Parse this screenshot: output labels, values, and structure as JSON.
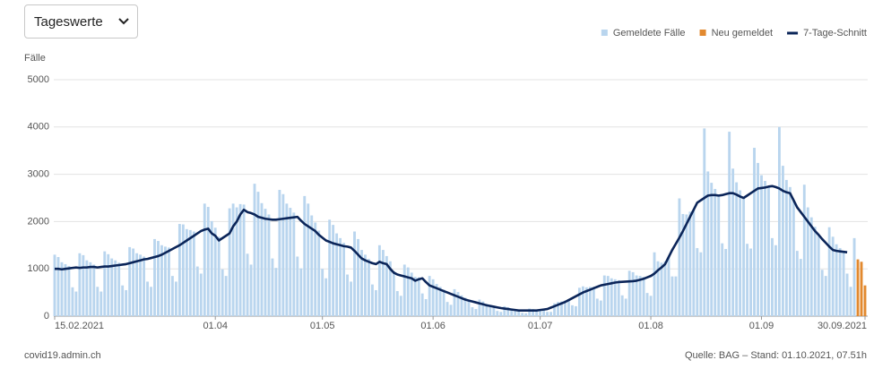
{
  "dropdown": {
    "label": "Tageswerte"
  },
  "footer": {
    "site": "covid19.admin.ch",
    "source": "Quelle: BAG – Stand: 01.10.2021, 07.51h"
  },
  "chart_data": {
    "type": "bar",
    "y_label": "Fälle",
    "ylim": [
      0,
      5000
    ],
    "yticks": [
      0,
      1000,
      2000,
      3000,
      4000,
      5000
    ],
    "grid": true,
    "legend": "top-right",
    "stacked": true,
    "categories": [
      "15.02.2021",
      null,
      null,
      null,
      null,
      null,
      null,
      null,
      null,
      null,
      null,
      null,
      null,
      null,
      null,
      null,
      null,
      null,
      null,
      null,
      null,
      null,
      null,
      null,
      null,
      null,
      null,
      null,
      null,
      null,
      null,
      null,
      null,
      null,
      null,
      null,
      null,
      null,
      null,
      null,
      null,
      null,
      null,
      null,
      null,
      "01.04",
      null,
      null,
      null,
      null,
      null,
      null,
      null,
      null,
      null,
      null,
      null,
      null,
      null,
      null,
      null,
      null,
      null,
      null,
      null,
      null,
      null,
      null,
      null,
      null,
      null,
      null,
      null,
      null,
      null,
      "01.05",
      null,
      null,
      null,
      null,
      null,
      null,
      null,
      null,
      null,
      null,
      null,
      null,
      null,
      null,
      null,
      null,
      null,
      null,
      null,
      null,
      null,
      null,
      null,
      null,
      null,
      null,
      null,
      null,
      null,
      null,
      "01.06",
      null,
      null,
      null,
      null,
      null,
      null,
      null,
      null,
      null,
      null,
      null,
      null,
      null,
      null,
      null,
      null,
      null,
      null,
      null,
      null,
      null,
      null,
      null,
      null,
      null,
      null,
      null,
      null,
      null,
      "01.07",
      null,
      null,
      null,
      null,
      null,
      null,
      null,
      null,
      null,
      null,
      null,
      null,
      null,
      null,
      null,
      null,
      null,
      null,
      null,
      null,
      null,
      null,
      null,
      null,
      null,
      null,
      null,
      null,
      null,
      null,
      "01.08",
      null,
      null,
      null,
      null,
      null,
      null,
      null,
      null,
      null,
      null,
      null,
      null,
      null,
      null,
      null,
      null,
      null,
      null,
      null,
      null,
      null,
      null,
      null,
      null,
      null,
      null,
      null,
      null,
      null,
      null,
      "01.09",
      null,
      null,
      null,
      null,
      null,
      null,
      null,
      null,
      null,
      null,
      null,
      null,
      null,
      null,
      null,
      null,
      null,
      null,
      null,
      null,
      null,
      null,
      null,
      null,
      null,
      null,
      null,
      null,
      "30.09.2021"
    ],
    "series": [
      {
        "name": "Gemeldete Fälle",
        "type": "bar",
        "color": "#b9d5ee",
        "values": [
          1300,
          1250,
          1140,
          1100,
          1060,
          610,
          520,
          1330,
          1290,
          1180,
          1140,
          1090,
          620,
          520,
          1370,
          1310,
          1220,
          1180,
          1130,
          650,
          550,
          1460,
          1430,
          1330,
          1300,
          1260,
          730,
          620,
          1630,
          1590,
          1500,
          1470,
          1450,
          850,
          730,
          1950,
          1940,
          1840,
          1820,
          1790,
          1050,
          900,
          2380,
          2310,
          2010,
          1870,
          1680,
          990,
          850,
          2280,
          2380,
          2300,
          2370,
          2360,
          1320,
          1090,
          2800,
          2630,
          2390,
          2270,
          2150,
          1220,
          1020,
          2670,
          2580,
          2380,
          2290,
          2190,
          1260,
          1010,
          2540,
          2380,
          2130,
          1980,
          1810,
          1000,
          800,
          2040,
          1930,
          1750,
          1650,
          1550,
          880,
          730,
          1790,
          1630,
          1400,
          1300,
          1210,
          670,
          550,
          1500,
          1400,
          1270,
          1160,
          950,
          530,
          430,
          1090,
          1030,
          920,
          830,
          820,
          480,
          360,
          850,
          780,
          680,
          620,
          560,
          300,
          240,
          570,
          510,
          440,
          390,
          350,
          190,
          150,
          350,
          310,
          260,
          240,
          210,
          110,
          90,
          210,
          190,
          160,
          140,
          130,
          70,
          60,
          160,
          150,
          140,
          140,
          150,
          90,
          90,
          270,
          300,
          310,
          330,
          360,
          230,
          210,
          600,
          630,
          610,
          620,
          620,
          370,
          330,
          860,
          850,
          800,
          780,
          760,
          440,
          370,
          960,
          930,
          860,
          850,
          830,
          490,
          430,
          1350,
          1160,
          1130,
          1160,
          1250,
          840,
          840,
          2490,
          2160,
          2150,
          2210,
          2250,
          1440,
          1350,
          3970,
          3060,
          2820,
          2690,
          2550,
          1540,
          1420,
          3900,
          3120,
          2830,
          2660,
          2500,
          1530,
          1430,
          3560,
          3240,
          2980,
          2860,
          2740,
          1650,
          1500,
          4000,
          3180,
          2880,
          2730,
          2450,
          1380,
          1210,
          2780,
          2300,
          2090,
          1890,
          1720,
          980,
          850,
          1880,
          1680,
          1520,
          1440,
          1360,
          900,
          620,
          1650,
          null,
          null,
          null
        ]
      },
      {
        "name": "Neu gemeldet",
        "type": "bar",
        "color": "#e2892f",
        "values": [
          null,
          null,
          null,
          null,
          null,
          null,
          null,
          null,
          null,
          null,
          null,
          null,
          null,
          null,
          null,
          null,
          null,
          null,
          null,
          null,
          null,
          null,
          null,
          null,
          null,
          null,
          null,
          null,
          null,
          null,
          null,
          null,
          null,
          null,
          null,
          null,
          null,
          null,
          null,
          null,
          null,
          null,
          null,
          null,
          null,
          null,
          null,
          null,
          null,
          null,
          null,
          null,
          null,
          null,
          null,
          null,
          null,
          null,
          null,
          null,
          null,
          null,
          null,
          null,
          null,
          null,
          null,
          null,
          null,
          null,
          null,
          null,
          null,
          null,
          null,
          null,
          null,
          null,
          null,
          null,
          null,
          null,
          null,
          null,
          null,
          null,
          null,
          null,
          null,
          null,
          null,
          null,
          null,
          null,
          null,
          null,
          null,
          null,
          null,
          null,
          null,
          null,
          null,
          null,
          null,
          null,
          null,
          null,
          null,
          null,
          null,
          null,
          null,
          null,
          null,
          null,
          null,
          null,
          null,
          null,
          null,
          null,
          null,
          null,
          null,
          null,
          null,
          null,
          null,
          null,
          null,
          null,
          null,
          null,
          null,
          null,
          null,
          null,
          null,
          null,
          null,
          null,
          null,
          null,
          null,
          null,
          null,
          null,
          null,
          null,
          null,
          null,
          null,
          null,
          null,
          null,
          null,
          null,
          null,
          null,
          null,
          null,
          null,
          null,
          null,
          null,
          null,
          null,
          null,
          null,
          null,
          null,
          null,
          null,
          null,
          null,
          null,
          null,
          null,
          null,
          null,
          null,
          null,
          null,
          null,
          null,
          null,
          null,
          null,
          null,
          null,
          null,
          null,
          null,
          null,
          null,
          null,
          null,
          null,
          null,
          null,
          null,
          null,
          null,
          null,
          null,
          null,
          null,
          null,
          null,
          null,
          null,
          null,
          null,
          null,
          null,
          null,
          null,
          null,
          null,
          null,
          null,
          null,
          null,
          null,
          1200,
          1150,
          650
        ]
      },
      {
        "name": "7-Tage-Schnitt",
        "type": "line",
        "color": "#0b2559",
        "values": [
          1000,
          1000,
          990,
          1000,
          1010,
          1020,
          1030,
          1020,
          1030,
          1030,
          1040,
          1040,
          1030,
          1040,
          1050,
          1050,
          1060,
          1070,
          1080,
          1090,
          1100,
          1120,
          1140,
          1160,
          1180,
          1200,
          1210,
          1230,
          1250,
          1270,
          1300,
          1340,
          1380,
          1420,
          1460,
          1500,
          1550,
          1600,
          1650,
          1700,
          1750,
          1800,
          1830,
          1850,
          1750,
          1700,
          1600,
          1650,
          1700,
          1750,
          1900,
          2000,
          2150,
          2250,
          2200,
          2180,
          2150,
          2100,
          2080,
          2060,
          2050,
          2040,
          2040,
          2050,
          2060,
          2070,
          2080,
          2090,
          2100,
          2020,
          1950,
          1900,
          1850,
          1800,
          1720,
          1660,
          1600,
          1570,
          1540,
          1520,
          1500,
          1480,
          1470,
          1450,
          1380,
          1300,
          1220,
          1180,
          1150,
          1120,
          1100,
          1150,
          1120,
          1100,
          1000,
          920,
          880,
          860,
          840,
          820,
          800,
          750,
          780,
          800,
          720,
          650,
          620,
          590,
          560,
          530,
          500,
          470,
          440,
          410,
          380,
          350,
          330,
          310,
          290,
          270,
          250,
          230,
          215,
          200,
          185,
          170,
          160,
          150,
          140,
          130,
          120,
          120,
          120,
          120,
          120,
          120,
          130,
          140,
          150,
          180,
          210,
          240,
          270,
          300,
          340,
          380,
          420,
          460,
          500,
          530,
          560,
          590,
          620,
          650,
          665,
          680,
          695,
          710,
          720,
          725,
          730,
          735,
          740,
          750,
          770,
          790,
          820,
          850,
          900,
          970,
          1030,
          1100,
          1250,
          1400,
          1530,
          1660,
          1800,
          1950,
          2100,
          2250,
          2400,
          2450,
          2500,
          2550,
          2560,
          2560,
          2550,
          2560,
          2580,
          2600,
          2600,
          2570,
          2530,
          2500,
          2550,
          2600,
          2650,
          2700,
          2710,
          2720,
          2740,
          2750,
          2730,
          2700,
          2650,
          2620,
          2600,
          2450,
          2300,
          2200,
          2100,
          2000,
          1900,
          1800,
          1720,
          1630,
          1550,
          1470,
          1400,
          1380,
          1370,
          1360,
          1350,
          null,
          null,
          null,
          null,
          null
        ]
      }
    ]
  }
}
